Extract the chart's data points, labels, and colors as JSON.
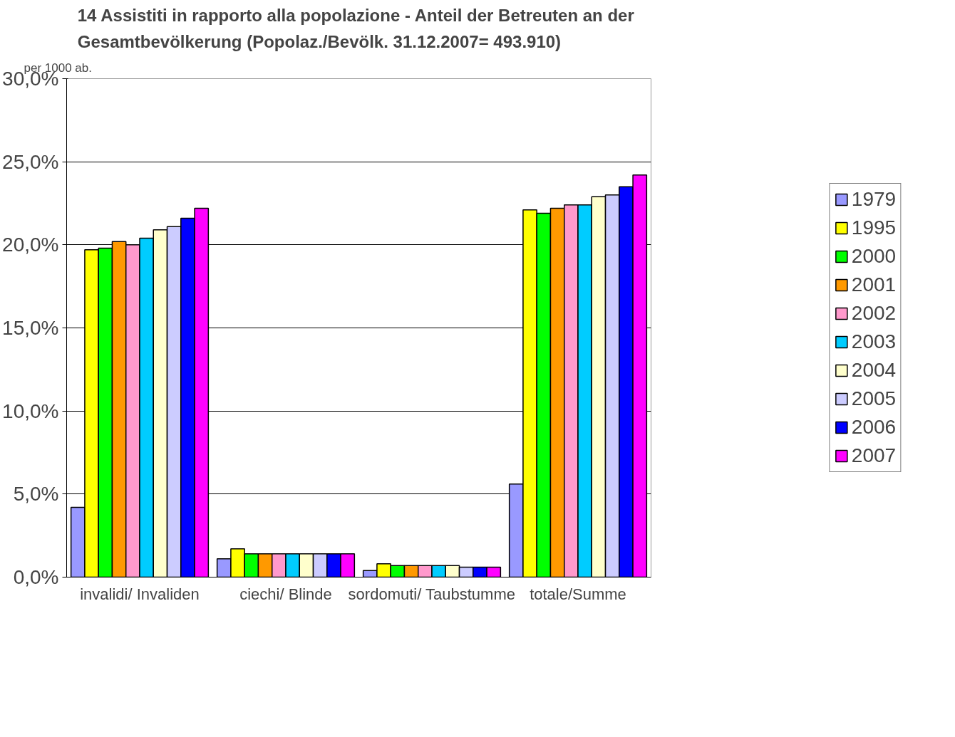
{
  "chart_data": {
    "type": "bar",
    "title": "14  Assistiti in rapporto alla popolazione - Anteil der Betreuten an der\nGesamtbevölkerung (Popolaz./Bevölk. 31.12.2007= 493.910)",
    "annotations": [
      "per 1000 ab."
    ],
    "categories": [
      "invalidi/ Invaliden",
      "ciechi/ Blinde",
      "sordomuti/ Taubstumme",
      "totale/Summe"
    ],
    "series": [
      {
        "name": "1979",
        "color": "#9999ff",
        "values": [
          4.2,
          1.1,
          0.4,
          5.6
        ]
      },
      {
        "name": "1995",
        "color": "#ffff00",
        "values": [
          19.7,
          1.7,
          0.8,
          22.1
        ]
      },
      {
        "name": "2000",
        "color": "#00ff00",
        "values": [
          19.8,
          1.4,
          0.7,
          21.9
        ]
      },
      {
        "name": "2001",
        "color": "#ff9900",
        "values": [
          20.2,
          1.4,
          0.7,
          22.2
        ]
      },
      {
        "name": "2002",
        "color": "#ff99cc",
        "values": [
          20.0,
          1.4,
          0.7,
          22.4
        ]
      },
      {
        "name": "2003",
        "color": "#00ccff",
        "values": [
          20.4,
          1.4,
          0.7,
          22.4
        ]
      },
      {
        "name": "2004",
        "color": "#ffffcc",
        "values": [
          20.9,
          1.4,
          0.7,
          22.9
        ]
      },
      {
        "name": "2005",
        "color": "#ccccff",
        "values": [
          21.1,
          1.4,
          0.6,
          23.0
        ]
      },
      {
        "name": "2006",
        "color": "#0000ff",
        "values": [
          21.6,
          1.4,
          0.6,
          23.5
        ]
      },
      {
        "name": "2007",
        "color": "#ff00ff",
        "values": [
          22.2,
          1.4,
          0.6,
          24.2
        ]
      }
    ],
    "ylim": [
      0,
      30
    ],
    "yticks": [
      {
        "value": 0,
        "label": "0,0%"
      },
      {
        "value": 5,
        "label": "5,0%"
      },
      {
        "value": 10,
        "label": "10,0%"
      },
      {
        "value": 15,
        "label": "15,0%"
      },
      {
        "value": 20,
        "label": "20,0%"
      },
      {
        "value": 25,
        "label": "25,0%"
      },
      {
        "value": 30,
        "label": "30,0%"
      }
    ],
    "grid": "y",
    "legend": "right"
  }
}
